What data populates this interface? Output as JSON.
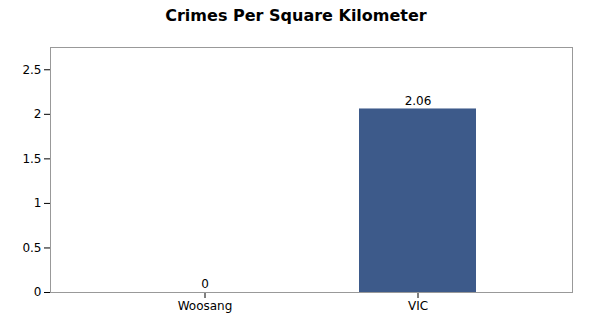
{
  "chart_data": {
    "type": "bar",
    "title": "Crimes Per Square Kilometer",
    "categories": [
      "Woosang",
      "VIC"
    ],
    "values": [
      0,
      2.06
    ],
    "colors": [
      "#3d5a8a",
      "#3d5a8a"
    ],
    "ylim": [
      0,
      2.75
    ],
    "yticks": [
      0,
      0.5,
      1.0,
      1.5,
      2.0,
      2.5
    ],
    "grid": false,
    "data_labels": true
  }
}
